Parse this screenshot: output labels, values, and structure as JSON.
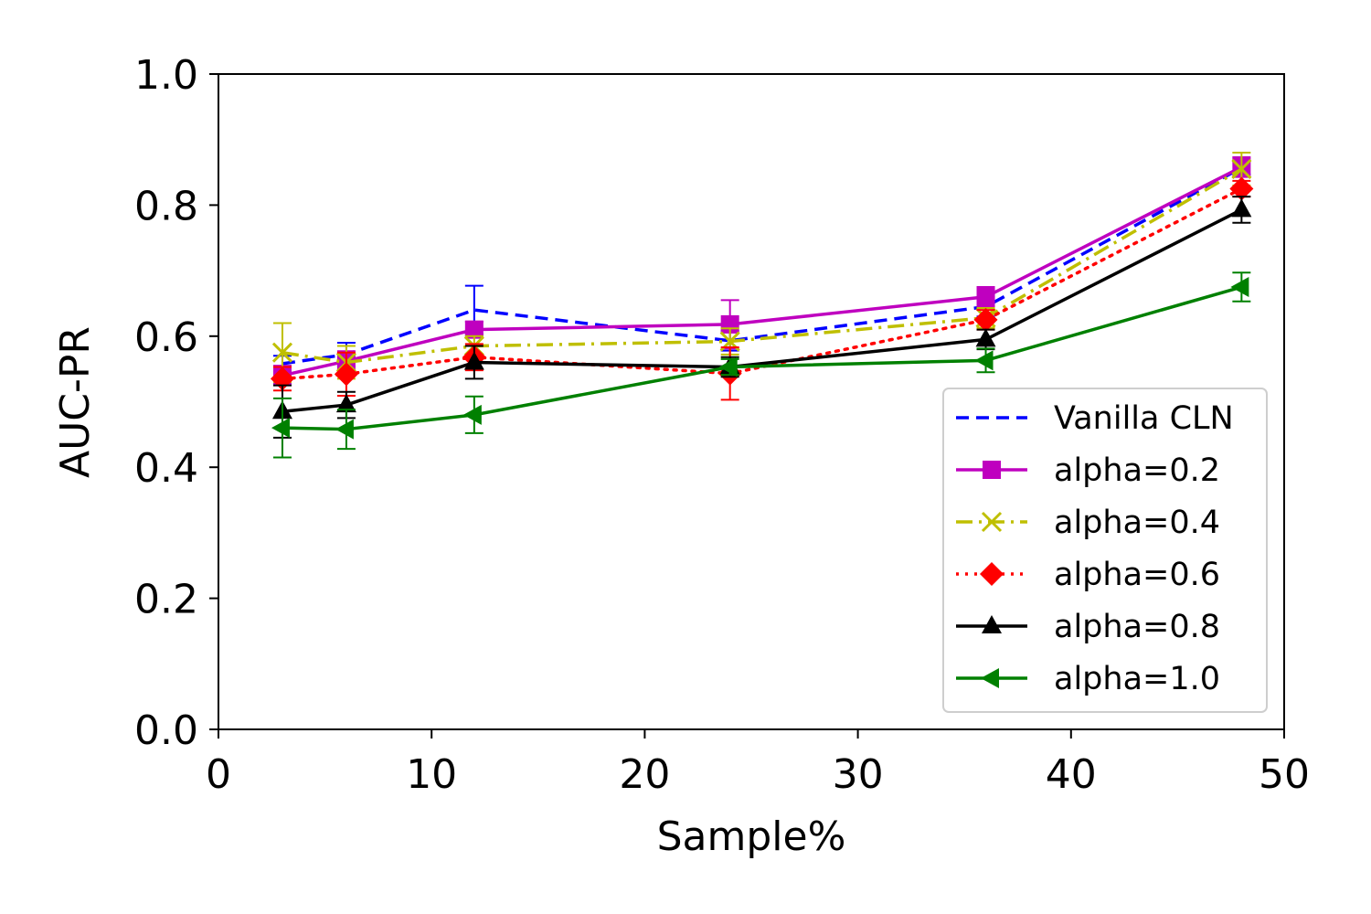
{
  "chart_data": {
    "type": "line",
    "xlabel": "Sample%",
    "ylabel": "AUC-PR",
    "xlim": [
      0,
      50
    ],
    "ylim": [
      0.0,
      1.0
    ],
    "xticks": [
      0,
      10,
      20,
      30,
      40,
      50
    ],
    "yticks": [
      0.0,
      0.2,
      0.4,
      0.6,
      0.8,
      1.0
    ],
    "xtick_labels": [
      "0",
      "10",
      "20",
      "30",
      "40",
      "50"
    ],
    "ytick_labels": [
      "0.0",
      "0.2",
      "0.4",
      "0.6",
      "0.8",
      "1.0"
    ],
    "grid": false,
    "legend_position": "lower-right",
    "x": [
      3,
      6,
      12,
      24,
      36,
      48
    ],
    "series": [
      {
        "name": "Vanilla CLN",
        "color": "#0000ff",
        "dash": "dashed",
        "marker": "none",
        "values": [
          0.558,
          0.572,
          0.64,
          0.593,
          0.645,
          0.857
        ],
        "errors": [
          0.012,
          0.018,
          0.037,
          0.015,
          0.015,
          0.01
        ]
      },
      {
        "name": "alpha=0.2",
        "color": "#bf00bf",
        "dash": "solid",
        "marker": "square",
        "values": [
          0.54,
          0.562,
          0.61,
          0.618,
          0.66,
          0.858
        ],
        "errors": [
          0.015,
          0.015,
          0.012,
          0.037,
          0.015,
          0.015
        ]
      },
      {
        "name": "alpha=0.4",
        "color": "#bfbf00",
        "dash": "dashdot",
        "marker": "x",
        "values": [
          0.575,
          0.56,
          0.585,
          0.592,
          0.628,
          0.855
        ],
        "errors": [
          0.045,
          0.025,
          0.015,
          0.02,
          0.015,
          0.025
        ]
      },
      {
        "name": "alpha=0.6",
        "color": "#ff0000",
        "dash": "dotted",
        "marker": "diamond",
        "values": [
          0.535,
          0.542,
          0.568,
          0.543,
          0.625,
          0.825
        ],
        "errors": [
          0.018,
          0.033,
          0.02,
          0.04,
          0.015,
          0.012
        ]
      },
      {
        "name": "alpha=0.8",
        "color": "#000000",
        "dash": "solid",
        "marker": "triangle-up",
        "values": [
          0.485,
          0.495,
          0.56,
          0.553,
          0.595,
          0.793
        ],
        "errors": [
          0.04,
          0.02,
          0.025,
          0.015,
          0.015,
          0.02
        ]
      },
      {
        "name": "alpha=1.0",
        "color": "#008000",
        "dash": "solid",
        "marker": "triangle-left",
        "values": [
          0.46,
          0.458,
          0.48,
          0.553,
          0.563,
          0.675
        ],
        "errors": [
          0.045,
          0.03,
          0.028,
          0.012,
          0.018,
          0.022
        ]
      }
    ]
  }
}
